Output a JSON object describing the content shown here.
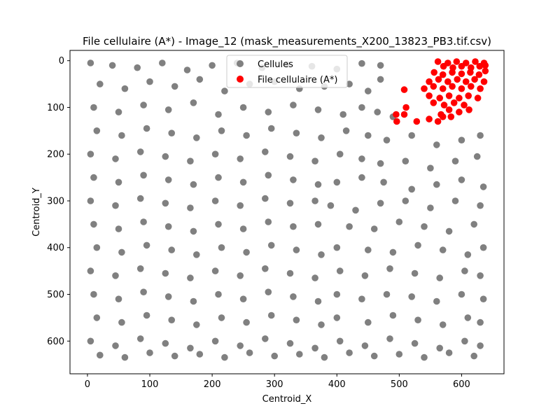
{
  "chart_data": {
    "type": "scatter",
    "title": "File cellulaire (A*) - Image_12 (mask_measurements_X200_13823_PB3.tif.csv)",
    "xlabel": "Centroid_X",
    "ylabel": "Centroid_Y",
    "xlim": [
      -28,
      668
    ],
    "ylim": [
      670,
      -22
    ],
    "y_inverted": true,
    "grid": false,
    "legend_placement": "top-center",
    "x_ticks": [
      0,
      100,
      200,
      300,
      400,
      500,
      600
    ],
    "y_ticks": [
      0,
      100,
      200,
      300,
      400,
      500,
      600
    ],
    "series": [
      {
        "name": "Cellules",
        "color": "#808080",
        "marker": "circle",
        "point_count_estimate": 1500,
        "distribution_note": "dense tissue field spanning x 0-640, y 0-640 with cell-free gaps",
        "points": [
          [
            5,
            5
          ],
          [
            40,
            10
          ],
          [
            80,
            15
          ],
          [
            120,
            5
          ],
          [
            160,
            20
          ],
          [
            200,
            10
          ],
          [
            240,
            5
          ],
          [
            280,
            15
          ],
          [
            320,
            8
          ],
          [
            360,
            12
          ],
          [
            400,
            18
          ],
          [
            440,
            6
          ],
          [
            470,
            10
          ],
          [
            20,
            50
          ],
          [
            60,
            60
          ],
          [
            100,
            45
          ],
          [
            140,
            55
          ],
          [
            180,
            40
          ],
          [
            220,
            65
          ],
          [
            260,
            50
          ],
          [
            300,
            45
          ],
          [
            340,
            60
          ],
          [
            380,
            55
          ],
          [
            420,
            50
          ],
          [
            450,
            65
          ],
          [
            470,
            40
          ],
          [
            10,
            100
          ],
          [
            50,
            110
          ],
          [
            90,
            95
          ],
          [
            130,
            105
          ],
          [
            170,
            90
          ],
          [
            210,
            115
          ],
          [
            250,
            100
          ],
          [
            290,
            110
          ],
          [
            330,
            95
          ],
          [
            370,
            105
          ],
          [
            410,
            115
          ],
          [
            440,
            100
          ],
          [
            465,
            110
          ],
          [
            490,
            120
          ],
          [
            15,
            150
          ],
          [
            55,
            160
          ],
          [
            95,
            145
          ],
          [
            135,
            155
          ],
          [
            175,
            165
          ],
          [
            215,
            150
          ],
          [
            255,
            160
          ],
          [
            295,
            145
          ],
          [
            335,
            155
          ],
          [
            375,
            165
          ],
          [
            415,
            150
          ],
          [
            450,
            160
          ],
          [
            480,
            170
          ],
          [
            520,
            160
          ],
          [
            560,
            180
          ],
          [
            600,
            170
          ],
          [
            630,
            160
          ],
          [
            5,
            200
          ],
          [
            45,
            210
          ],
          [
            85,
            195
          ],
          [
            125,
            205
          ],
          [
            165,
            215
          ],
          [
            205,
            200
          ],
          [
            245,
            210
          ],
          [
            285,
            195
          ],
          [
            325,
            205
          ],
          [
            365,
            215
          ],
          [
            405,
            200
          ],
          [
            440,
            210
          ],
          [
            470,
            220
          ],
          [
            510,
            215
          ],
          [
            550,
            230
          ],
          [
            590,
            215
          ],
          [
            625,
            205
          ],
          [
            10,
            250
          ],
          [
            50,
            260
          ],
          [
            90,
            245
          ],
          [
            130,
            255
          ],
          [
            170,
            265
          ],
          [
            210,
            250
          ],
          [
            250,
            260
          ],
          [
            290,
            245
          ],
          [
            330,
            255
          ],
          [
            370,
            265
          ],
          [
            400,
            260
          ],
          [
            440,
            250
          ],
          [
            475,
            260
          ],
          [
            520,
            275
          ],
          [
            560,
            265
          ],
          [
            600,
            255
          ],
          [
            635,
            270
          ],
          [
            5,
            300
          ],
          [
            45,
            310
          ],
          [
            85,
            295
          ],
          [
            125,
            305
          ],
          [
            165,
            315
          ],
          [
            205,
            300
          ],
          [
            245,
            310
          ],
          [
            285,
            295
          ],
          [
            325,
            305
          ],
          [
            365,
            300
          ],
          [
            390,
            310
          ],
          [
            430,
            320
          ],
          [
            470,
            305
          ],
          [
            510,
            300
          ],
          [
            550,
            315
          ],
          [
            590,
            300
          ],
          [
            630,
            310
          ],
          [
            10,
            350
          ],
          [
            50,
            360
          ],
          [
            90,
            345
          ],
          [
            130,
            355
          ],
          [
            170,
            365
          ],
          [
            210,
            350
          ],
          [
            250,
            360
          ],
          [
            290,
            345
          ],
          [
            330,
            355
          ],
          [
            370,
            350
          ],
          [
            420,
            355
          ],
          [
            460,
            360
          ],
          [
            500,
            345
          ],
          [
            540,
            355
          ],
          [
            580,
            365
          ],
          [
            620,
            350
          ],
          [
            15,
            400
          ],
          [
            55,
            410
          ],
          [
            95,
            395
          ],
          [
            135,
            405
          ],
          [
            175,
            415
          ],
          [
            215,
            400
          ],
          [
            255,
            410
          ],
          [
            295,
            395
          ],
          [
            335,
            405
          ],
          [
            375,
            415
          ],
          [
            400,
            400
          ],
          [
            450,
            405
          ],
          [
            490,
            410
          ],
          [
            530,
            395
          ],
          [
            570,
            405
          ],
          [
            610,
            415
          ],
          [
            635,
            400
          ],
          [
            5,
            450
          ],
          [
            45,
            460
          ],
          [
            85,
            445
          ],
          [
            125,
            455
          ],
          [
            165,
            465
          ],
          [
            205,
            450
          ],
          [
            245,
            460
          ],
          [
            285,
            445
          ],
          [
            325,
            455
          ],
          [
            365,
            465
          ],
          [
            405,
            450
          ],
          [
            445,
            460
          ],
          [
            485,
            445
          ],
          [
            525,
            455
          ],
          [
            565,
            465
          ],
          [
            605,
            450
          ],
          [
            630,
            460
          ],
          [
            10,
            500
          ],
          [
            50,
            510
          ],
          [
            90,
            495
          ],
          [
            130,
            505
          ],
          [
            170,
            515
          ],
          [
            210,
            500
          ],
          [
            250,
            510
          ],
          [
            290,
            495
          ],
          [
            330,
            505
          ],
          [
            370,
            515
          ],
          [
            400,
            500
          ],
          [
            440,
            510
          ],
          [
            480,
            500
          ],
          [
            520,
            505
          ],
          [
            560,
            515
          ],
          [
            600,
            500
          ],
          [
            635,
            510
          ],
          [
            15,
            550
          ],
          [
            55,
            560
          ],
          [
            95,
            545
          ],
          [
            135,
            555
          ],
          [
            175,
            565
          ],
          [
            215,
            550
          ],
          [
            255,
            560
          ],
          [
            295,
            545
          ],
          [
            335,
            555
          ],
          [
            375,
            565
          ],
          [
            400,
            550
          ],
          [
            450,
            560
          ],
          [
            490,
            545
          ],
          [
            530,
            555
          ],
          [
            570,
            565
          ],
          [
            610,
            550
          ],
          [
            630,
            560
          ],
          [
            5,
            600
          ],
          [
            45,
            610
          ],
          [
            85,
            595
          ],
          [
            125,
            605
          ],
          [
            165,
            615
          ],
          [
            205,
            600
          ],
          [
            245,
            610
          ],
          [
            285,
            595
          ],
          [
            325,
            605
          ],
          [
            365,
            615
          ],
          [
            405,
            600
          ],
          [
            445,
            610
          ],
          [
            485,
            595
          ],
          [
            525,
            605
          ],
          [
            565,
            615
          ],
          [
            605,
            600
          ],
          [
            630,
            610
          ],
          [
            20,
            630
          ],
          [
            60,
            635
          ],
          [
            100,
            625
          ],
          [
            140,
            632
          ],
          [
            180,
            628
          ],
          [
            220,
            635
          ],
          [
            260,
            625
          ],
          [
            300,
            632
          ],
          [
            340,
            628
          ],
          [
            380,
            635
          ],
          [
            420,
            625
          ],
          [
            460,
            632
          ],
          [
            500,
            628
          ],
          [
            540,
            635
          ],
          [
            580,
            625
          ],
          [
            620,
            632
          ]
        ]
      },
      {
        "name": "File cellulaire (A*)",
        "color": "#ff0000",
        "marker": "circle",
        "points": [
          [
            562,
            2
          ],
          [
            578,
            5
          ],
          [
            592,
            2
          ],
          [
            607,
            5
          ],
          [
            622,
            2
          ],
          [
            636,
            5
          ],
          [
            571,
            12
          ],
          [
            586,
            15
          ],
          [
            600,
            12
          ],
          [
            615,
            15
          ],
          [
            629,
            12
          ],
          [
            638,
            10
          ],
          [
            556,
            25
          ],
          [
            570,
            30
          ],
          [
            585,
            25
          ],
          [
            600,
            28
          ],
          [
            614,
            25
          ],
          [
            628,
            30
          ],
          [
            638,
            22
          ],
          [
            548,
            45
          ],
          [
            563,
            40
          ],
          [
            578,
            45
          ],
          [
            593,
            40
          ],
          [
            607,
            45
          ],
          [
            621,
            40
          ],
          [
            636,
            45
          ],
          [
            540,
            60
          ],
          [
            555,
            55
          ],
          [
            570,
            60
          ],
          [
            585,
            55
          ],
          [
            600,
            60
          ],
          [
            615,
            55
          ],
          [
            630,
            60
          ],
          [
            508,
            62
          ],
          [
            548,
            75
          ],
          [
            565,
            80
          ],
          [
            580,
            75
          ],
          [
            596,
            80
          ],
          [
            611,
            75
          ],
          [
            626,
            80
          ],
          [
            555,
            90
          ],
          [
            572,
            95
          ],
          [
            588,
            90
          ],
          [
            604,
            95
          ],
          [
            511,
            100
          ],
          [
            580,
            105
          ],
          [
            596,
            110
          ],
          [
            612,
            105
          ],
          [
            567,
            115
          ],
          [
            583,
            120
          ],
          [
            495,
            115
          ],
          [
            508,
            115
          ],
          [
            528,
            130
          ],
          [
            548,
            125
          ],
          [
            496,
            130
          ],
          [
            562,
            130
          ],
          [
            570,
            120
          ]
        ]
      }
    ]
  }
}
